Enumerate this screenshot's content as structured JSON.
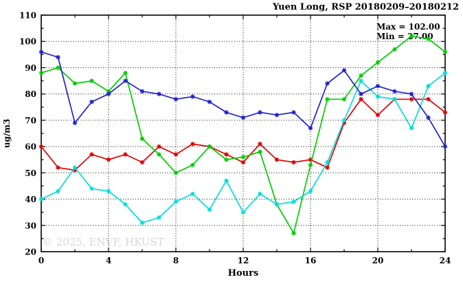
{
  "title": "Yuen Long, RSP 20180209–20180212",
  "annotations": {
    "max_label": "Max = 102.00",
    "min_label": "Min = 27.00"
  },
  "watermark": "© 2025, ENVF, HKUST",
  "chart_data": {
    "type": "line",
    "title": "Yuen Long, RSP 20180209–20180212",
    "xlabel": "Hours",
    "ylabel": "ug/m3",
    "xlim": [
      0,
      24
    ],
    "ylim": [
      20,
      110
    ],
    "grid": true,
    "legend_position": "none",
    "x_major_ticks": [
      0,
      4,
      8,
      12,
      16,
      20,
      24
    ],
    "x_minor_ticks": [
      2,
      6,
      10,
      14,
      18,
      22
    ],
    "y_major_ticks": [
      20,
      30,
      40,
      50,
      60,
      70,
      80,
      90,
      100,
      110
    ],
    "y_minor_ticks": [
      25,
      35,
      45,
      55,
      65,
      75,
      85,
      95,
      105
    ],
    "x": [
      0,
      1,
      2,
      3,
      4,
      5,
      6,
      7,
      8,
      9,
      10,
      11,
      12,
      13,
      14,
      15,
      16,
      17,
      18,
      19,
      20,
      21,
      22,
      23,
      24
    ],
    "series": [
      {
        "name": "series-red",
        "color": "#e00000",
        "values": [
          60,
          52,
          51,
          57,
          55,
          57,
          54,
          60,
          57,
          61,
          60,
          57,
          54,
          61,
          55,
          54,
          55,
          52,
          69,
          78,
          72,
          78,
          78,
          78,
          73
        ]
      },
      {
        "name": "series-green",
        "color": "#00cc00",
        "values": [
          88,
          90,
          84,
          85,
          81,
          88,
          63,
          57,
          50,
          53,
          60,
          55,
          56,
          58,
          38,
          27,
          53,
          78,
          78,
          87,
          92,
          97,
          102,
          101,
          96
        ]
      },
      {
        "name": "series-cyan",
        "color": "#00dddd",
        "values": [
          40,
          43,
          52,
          44,
          43,
          38,
          31,
          33,
          39,
          42,
          36,
          47,
          35,
          42,
          38,
          39,
          43,
          54,
          70,
          85,
          79,
          78,
          67,
          83,
          88
        ]
      },
      {
        "name": "series-blue",
        "color": "#2222cc",
        "values": [
          96,
          94,
          69,
          77,
          80,
          85,
          81,
          80,
          78,
          79,
          77,
          73,
          71,
          73,
          72,
          73,
          67,
          84,
          89,
          80,
          83,
          81,
          80,
          71,
          60
        ]
      }
    ],
    "max": 102.0,
    "min": 27.0
  }
}
